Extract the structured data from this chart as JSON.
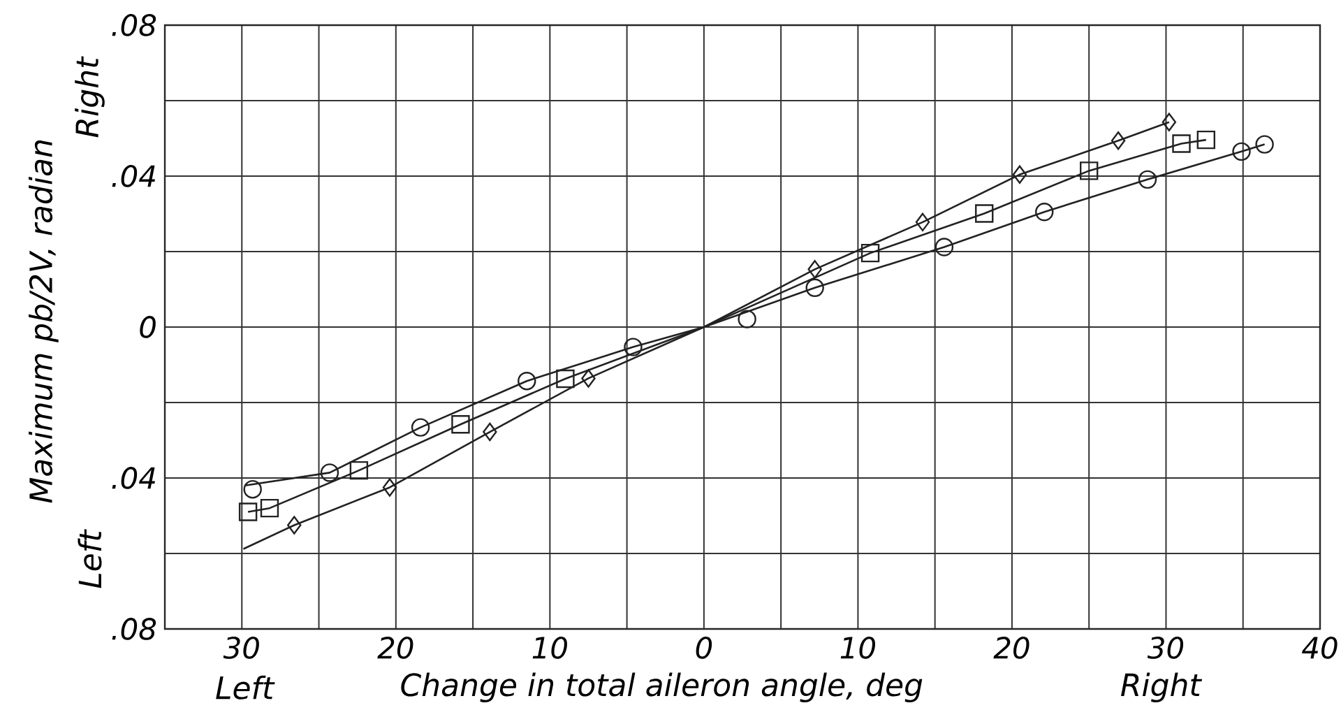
{
  "chart_data": {
    "type": "scatter",
    "xlabel": "Change in total aileron angle, deg",
    "ylabel": "Maximum pb/2V, radian",
    "annotations": [
      "Right",
      "Left",
      "Left",
      "Right"
    ],
    "xlim": [
      -35,
      40
    ],
    "ylim": [
      -0.08,
      0.08
    ],
    "xticks": [
      {
        "value": -35,
        "label": null
      },
      {
        "value": -30,
        "label": "30"
      },
      {
        "value": -25,
        "label": null
      },
      {
        "value": -20,
        "label": "20"
      },
      {
        "value": -15,
        "label": null
      },
      {
        "value": -10,
        "label": "10"
      },
      {
        "value": -5,
        "label": null
      },
      {
        "value": 0,
        "label": "0"
      },
      {
        "value": 5,
        "label": null
      },
      {
        "value": 10,
        "label": "10"
      },
      {
        "value": 15,
        "label": null
      },
      {
        "value": 20,
        "label": "20"
      },
      {
        "value": 25,
        "label": null
      },
      {
        "value": 30,
        "label": "30"
      },
      {
        "value": 35,
        "label": null
      },
      {
        "value": 40,
        "label": "40"
      }
    ],
    "yticks": [
      {
        "value": -0.08,
        "label": ".08"
      },
      {
        "value": -0.06,
        "label": null
      },
      {
        "value": -0.04,
        "label": ".04"
      },
      {
        "value": -0.02,
        "label": null
      },
      {
        "value": 0,
        "label": "0"
      },
      {
        "value": 0.02,
        "label": null
      },
      {
        "value": 0.04,
        "label": ".04"
      },
      {
        "value": 0.06,
        "label": null
      },
      {
        "value": 0.08,
        "label": ".08"
      }
    ],
    "grid": true,
    "series": [
      {
        "marker": "circle",
        "color": "#222222",
        "x": [
          -29.3,
          -24.3,
          -18.4,
          -11.5,
          -4.6,
          2.8,
          7.2,
          15.6,
          22.1,
          28.8,
          34.9,
          36.4
        ],
        "values": [
          -0.043,
          -0.0386,
          -0.0266,
          -0.0143,
          -0.0053,
          0.0021,
          0.0104,
          0.0212,
          0.0305,
          0.0391,
          0.0465,
          0.0484
        ]
      },
      {
        "marker": "square",
        "color": "#222222",
        "x": [
          -29.6,
          -28.2,
          -22.4,
          -15.8,
          -9.0,
          10.8,
          18.2,
          25.0,
          31.0,
          32.6
        ],
        "values": [
          -0.049,
          -0.048,
          -0.038,
          -0.0258,
          -0.0137,
          0.0196,
          0.0301,
          0.0414,
          0.0486,
          0.0496
        ]
      },
      {
        "marker": "diamond",
        "color": "#222222",
        "x": [
          -26.6,
          -20.4,
          -13.9,
          -7.5,
          7.2,
          14.2,
          20.5,
          26.9,
          30.2
        ],
        "values": [
          -0.0525,
          -0.0425,
          -0.0278,
          -0.0136,
          0.0153,
          0.0278,
          0.0404,
          0.0494,
          0.0543
        ]
      },
      {
        "type": "line",
        "marker": "none",
        "color": "#222222",
        "x": [
          -29.8,
          -24.3,
          -18.4,
          -11.5,
          -4.6,
          0,
          7.2,
          15.6,
          22.1,
          28.8,
          34.9,
          36.4
        ],
        "values": [
          -0.042,
          -0.0386,
          -0.0266,
          -0.0143,
          -0.0053,
          0,
          0.0104,
          0.0212,
          0.0305,
          0.0391,
          0.0465,
          0.0484
        ]
      },
      {
        "type": "line",
        "marker": "none",
        "color": "#222222",
        "x": [
          -29.6,
          -28.2,
          -22.4,
          -15.8,
          -9.0,
          0,
          10.8,
          18.2,
          25.0,
          31.0,
          32.6
        ],
        "values": [
          -0.049,
          -0.048,
          -0.038,
          -0.0258,
          -0.0137,
          0,
          0.0196,
          0.0301,
          0.0414,
          0.0486,
          0.0496
        ]
      },
      {
        "type": "line",
        "marker": "none",
        "color": "#222222",
        "x": [
          -29.9,
          -26.6,
          -20.4,
          -13.9,
          -7.5,
          0,
          7.2,
          14.2,
          20.5,
          26.9,
          30.2
        ],
        "values": [
          -0.0588,
          -0.0525,
          -0.0425,
          -0.0278,
          -0.0136,
          0,
          0.0153,
          0.0278,
          0.0404,
          0.0494,
          0.0543
        ]
      }
    ]
  }
}
